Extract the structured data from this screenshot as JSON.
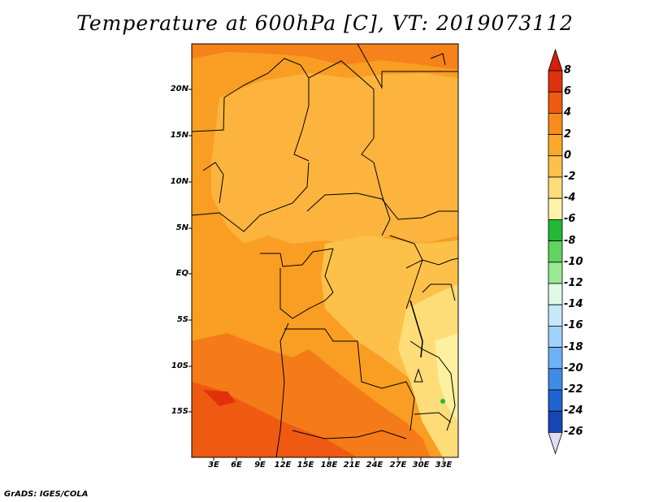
{
  "title": "Temperature at 600hPa [C], VT: 2019073112",
  "footer": "GrADS: IGES/COLA",
  "map": {
    "lat_labels": [
      "20N",
      "15N",
      "10N",
      "5N",
      "EQ",
      "5S",
      "10S",
      "15S"
    ],
    "lon_labels": [
      "3E",
      "6E",
      "9E",
      "12E",
      "15E",
      "18E",
      "21E",
      "24E",
      "27E",
      "30E",
      "33E"
    ]
  },
  "colorbar": {
    "labels": [
      "8",
      "6",
      "4",
      "2",
      "0",
      "-2",
      "-4",
      "-6",
      "-8",
      "-10",
      "-12",
      "-14",
      "-16",
      "-18",
      "-20",
      "-22",
      "-24",
      "-26"
    ],
    "colors": [
      "#e0320a",
      "#ef5a12",
      "#f78c1c",
      "#fba82a",
      "#fdc14a",
      "#fedc78",
      "#fef3a8",
      "#22b838",
      "#5fd45e",
      "#9ae894",
      "#dff8e8",
      "#c6e8fb",
      "#9fd2fb",
      "#6eb2f5",
      "#3f8ce8",
      "#1f64d2",
      "#1646b4",
      "#0c2e8c",
      "#081872",
      "#e0dcf8"
    ],
    "top_color": "#d4200a",
    "bottom_color": "#e0dcf8"
  }
}
